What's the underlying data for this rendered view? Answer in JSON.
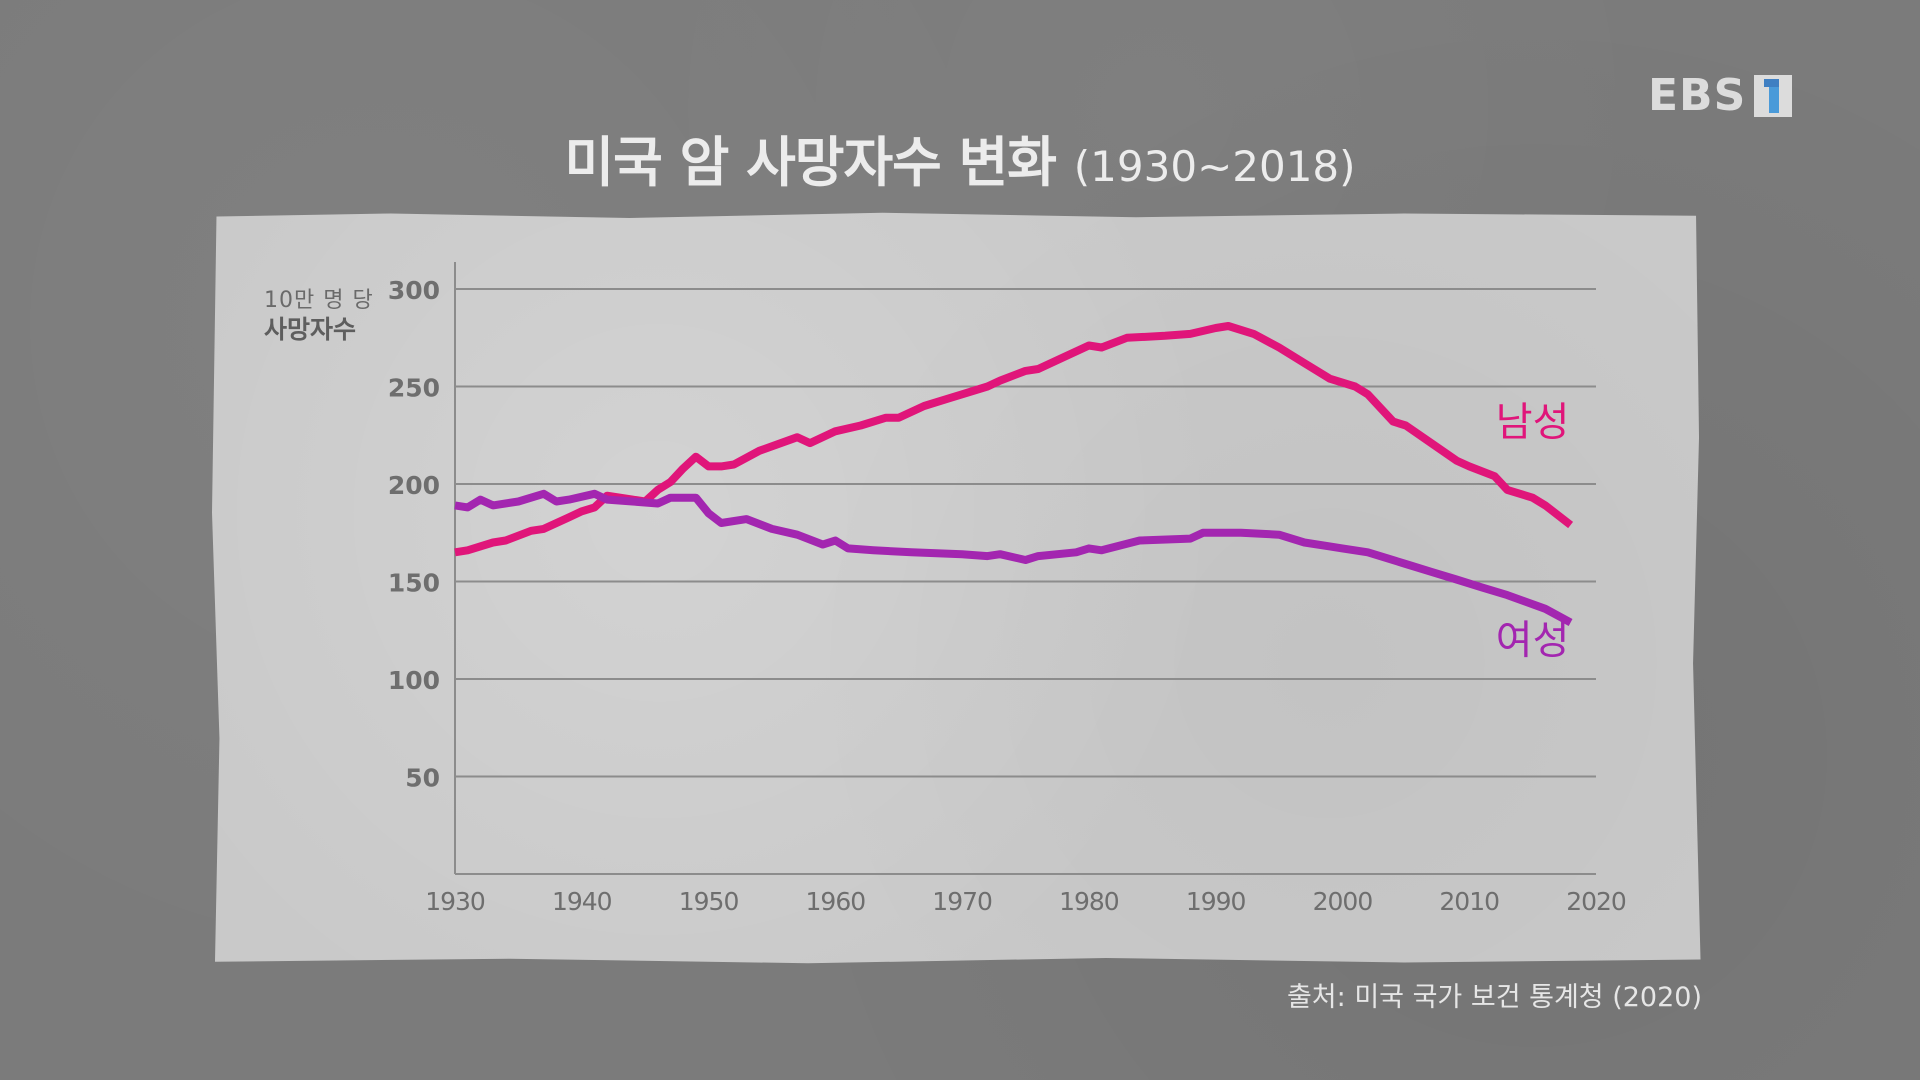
{
  "logo": {
    "text": "EBS",
    "channel_icon": "ebs-1-channel-icon",
    "accent": "#4a9ad9"
  },
  "title": {
    "main": "미국 암 사망자수 변화",
    "range": "(1930~2018)"
  },
  "axis_unit": {
    "line1": "10만 명 당",
    "line2": "사망자수"
  },
  "source": "출처: 미국 국가 보건 통계청 (2020)",
  "colors": {
    "male": "#e0157a",
    "female": "#a326b0",
    "grid": "#8c8c8c",
    "paper": "#c9c9c9",
    "background": "#7b7b7b"
  },
  "chart_data": {
    "type": "line",
    "title": "미국 암 사망자수 변화 (1930~2018)",
    "xlabel": "",
    "ylabel": "10만 명 당 사망자수",
    "xlim": [
      1930,
      2020
    ],
    "ylim": [
      0,
      300
    ],
    "x_ticks": [
      1930,
      1940,
      1950,
      1960,
      1970,
      1980,
      1990,
      2000,
      2010,
      2020
    ],
    "y_ticks": [
      50,
      100,
      150,
      200,
      250,
      300
    ],
    "grid": true,
    "legend_position": "inline-right",
    "series": [
      {
        "name": "남성",
        "color": "#e0157a",
        "x": [
          1930,
          1931,
          1933,
          1934,
          1936,
          1937,
          1939,
          1940,
          1941,
          1942,
          1944,
          1945,
          1946,
          1947,
          1948,
          1949,
          1950,
          1951,
          1952,
          1954,
          1957,
          1958,
          1960,
          1962,
          1964,
          1965,
          1967,
          1969,
          1970,
          1972,
          1973,
          1975,
          1976,
          1978,
          1980,
          1981,
          1983,
          1986,
          1988,
          1990,
          1991,
          1993,
          1995,
          1997,
          1999,
          2001,
          2002,
          2004,
          2005,
          2007,
          2009,
          2010,
          2012,
          2013,
          2015,
          2016,
          2018
        ],
        "values": [
          165,
          166,
          170,
          171,
          176,
          177,
          183,
          186,
          188,
          194,
          192,
          191,
          197,
          201,
          208,
          214,
          209,
          209,
          210,
          217,
          224,
          221,
          227,
          230,
          234,
          234,
          240,
          244,
          246,
          250,
          253,
          258,
          259,
          265,
          271,
          270,
          275,
          276,
          277,
          280,
          281,
          277,
          270,
          262,
          254,
          250,
          246,
          232,
          230,
          221,
          212,
          209,
          204,
          197,
          193,
          189,
          179
        ]
      },
      {
        "name": "여성",
        "color": "#a326b0",
        "x": [
          1930,
          1931,
          1932,
          1933,
          1935,
          1937,
          1938,
          1939,
          1941,
          1942,
          1944,
          1946,
          1947,
          1949,
          1950,
          1951,
          1953,
          1955,
          1957,
          1959,
          1960,
          1961,
          1963,
          1966,
          1970,
          1972,
          1973,
          1975,
          1976,
          1979,
          1980,
          1981,
          1984,
          1988,
          1989,
          1992,
          1995,
          1997,
          1999,
          2000,
          2002,
          2005,
          2007,
          2009,
          2011,
          2013,
          2016,
          2018
        ],
        "values": [
          189,
          188,
          192,
          189,
          191,
          195,
          191,
          192,
          195,
          192,
          191,
          190,
          193,
          193,
          185,
          180,
          182,
          177,
          174,
          169,
          171,
          167,
          166,
          165,
          164,
          163,
          164,
          161,
          163,
          165,
          167,
          166,
          171,
          172,
          175,
          175,
          174,
          170,
          168,
          167,
          165,
          159,
          155,
          151,
          147,
          143,
          136,
          129
        ]
      }
    ],
    "annotations": [
      {
        "text": "남성",
        "near": [
          2015,
          225
        ],
        "color": "#e0157a"
      },
      {
        "text": "여성",
        "near": [
          2015,
          113
        ],
        "color": "#a326b0"
      }
    ]
  },
  "labels": {
    "y": [
      "300",
      "250",
      "200",
      "150",
      "100",
      "50"
    ],
    "x": [
      "1930",
      "1940",
      "1950",
      "1960",
      "1970",
      "1980",
      "1990",
      "2000",
      "2010",
      "2020"
    ],
    "male": "남성",
    "female": "여성"
  }
}
